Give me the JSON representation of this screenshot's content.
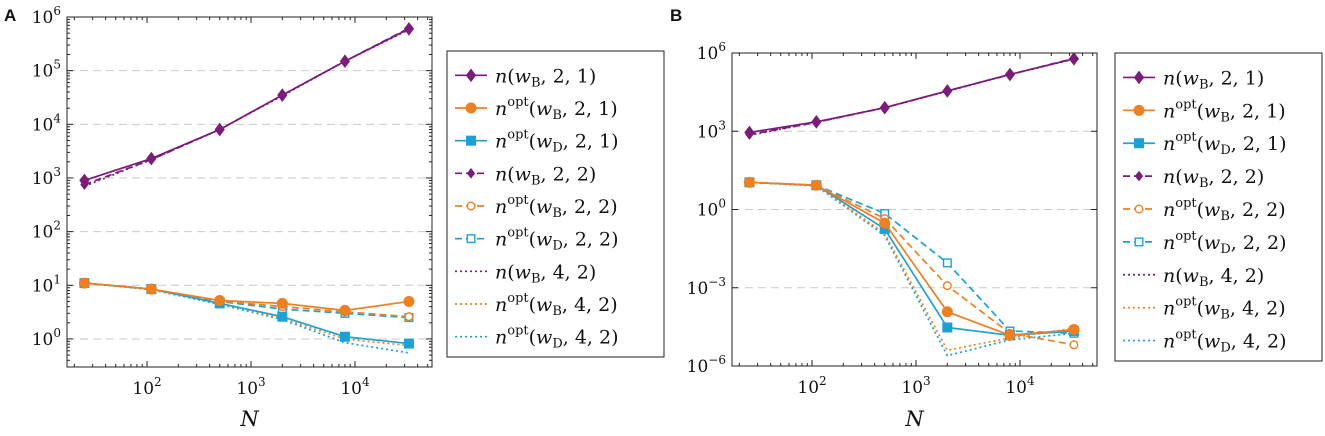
{
  "chart_data": [
    {
      "panel": "A",
      "type": "line",
      "xlabel": "N",
      "ylabel": "",
      "xscale": "log",
      "yscale": "log",
      "xlim": [
        17,
        55000
      ],
      "ylim": [
        0.3,
        1000000
      ],
      "x_ticks": [
        {
          "value": 100,
          "base": "10",
          "exp": "2"
        },
        {
          "value": 1000,
          "base": "10",
          "exp": "3"
        },
        {
          "value": 10000,
          "base": "10",
          "exp": "4"
        }
      ],
      "y_ticks": [
        {
          "value": 1,
          "base": "10",
          "exp": "0"
        },
        {
          "value": 10,
          "base": "10",
          "exp": "1"
        },
        {
          "value": 100,
          "base": "10",
          "exp": "2"
        },
        {
          "value": 1000,
          "base": "10",
          "exp": "3"
        },
        {
          "value": 10000,
          "base": "10",
          "exp": "4"
        },
        {
          "value": 100000,
          "base": "10",
          "exp": "5"
        },
        {
          "value": 1000000,
          "base": "10",
          "exp": "6"
        }
      ],
      "grid": "horizontal dashed",
      "legend_position": "outside-right",
      "series": [
        {
          "id": "s1",
          "x": [
            25,
            110,
            500,
            2000,
            8000,
            33000
          ],
          "y": [
            900,
            2300,
            8000,
            35000,
            150000,
            600000
          ]
        },
        {
          "id": "s2",
          "x": [
            25,
            110,
            500,
            2000,
            8000,
            33000
          ],
          "y": [
            11,
            8.5,
            5.2,
            4.6,
            3.4,
            5
          ]
        },
        {
          "id": "s3",
          "x": [
            25,
            110,
            500,
            2000,
            8000,
            33000
          ],
          "y": [
            11,
            8.5,
            4.6,
            2.6,
            1.1,
            0.82
          ]
        },
        {
          "id": "s4",
          "x": [
            25,
            110,
            500,
            2000,
            8000,
            33000
          ],
          "y": [
            750,
            2200,
            8000,
            35000,
            150000,
            620000
          ]
        },
        {
          "id": "s5",
          "x": [
            25,
            110,
            500,
            2000,
            8000,
            33000
          ],
          "y": [
            11,
            8.5,
            5.1,
            4.0,
            3.2,
            2.6
          ]
        },
        {
          "id": "s6",
          "x": [
            25,
            110,
            500,
            2000,
            8000,
            33000
          ],
          "y": [
            11,
            8.5,
            5.0,
            3.6,
            3.0,
            2.5
          ]
        },
        {
          "id": "s7",
          "x": [
            25,
            110,
            500,
            2000,
            8000,
            33000
          ],
          "y": [
            700,
            2200,
            8000,
            34000,
            150000,
            580000
          ]
        },
        {
          "id": "s8",
          "x": [
            25,
            110,
            500,
            2000,
            8000,
            33000
          ],
          "y": [
            11,
            8.4,
            4.6,
            2.4,
            1.0,
            0.75
          ]
        },
        {
          "id": "s9",
          "x": [
            25,
            110,
            500,
            2000,
            8000,
            33000
          ],
          "y": [
            11,
            8.3,
            4.4,
            2.3,
            0.85,
            0.55
          ]
        }
      ]
    },
    {
      "panel": "B",
      "type": "line",
      "xlabel": "N",
      "ylabel": "",
      "xscale": "log",
      "yscale": "log",
      "xlim": [
        17,
        55000
      ],
      "ylim": [
        1e-06,
        1000000
      ],
      "x_ticks": [
        {
          "value": 100,
          "base": "10",
          "exp": "2"
        },
        {
          "value": 1000,
          "base": "10",
          "exp": "3"
        },
        {
          "value": 10000,
          "base": "10",
          "exp": "4"
        }
      ],
      "y_ticks": [
        {
          "value": 1e-06,
          "base": "10",
          "exp": "−6"
        },
        {
          "value": 0.001,
          "base": "10",
          "exp": "−3"
        },
        {
          "value": 1,
          "base": "10",
          "exp": "0"
        },
        {
          "value": 1000,
          "base": "10",
          "exp": "3"
        },
        {
          "value": 1000000,
          "base": "10",
          "exp": "6"
        }
      ],
      "grid": "horizontal dashed",
      "legend_position": "outside-right",
      "series": [
        {
          "id": "s1",
          "x": [
            25,
            110,
            500,
            2000,
            8000,
            33000
          ],
          "y": [
            900,
            2300,
            8000,
            35000,
            150000,
            600000
          ]
        },
        {
          "id": "s2",
          "x": [
            25,
            110,
            500,
            2000,
            8000,
            33000
          ],
          "y": [
            11,
            8.5,
            0.3,
            0.00012,
            1.5e-05,
            2.5e-05
          ]
        },
        {
          "id": "s3",
          "x": [
            25,
            110,
            500,
            2000,
            8000,
            33000
          ],
          "y": [
            11,
            8.5,
            0.18,
            3e-05,
            1.5e-05,
            2.2e-05
          ]
        },
        {
          "id": "s4",
          "x": [
            25,
            110,
            500,
            2000,
            8000,
            33000
          ],
          "y": [
            750,
            2200,
            8000,
            35000,
            150000,
            620000
          ]
        },
        {
          "id": "s5",
          "x": [
            25,
            110,
            500,
            2000,
            8000,
            33000
          ],
          "y": [
            11,
            8.5,
            0.45,
            0.0012,
            1.8e-05,
            6.5e-06
          ]
        },
        {
          "id": "s6",
          "x": [
            25,
            110,
            500,
            2000,
            8000,
            33000
          ],
          "y": [
            11,
            8.5,
            0.7,
            0.009,
            2.2e-05,
            1.8e-05
          ]
        },
        {
          "id": "s7",
          "x": [
            25,
            110,
            500,
            2000,
            8000,
            33000
          ],
          "y": [
            700,
            2200,
            8000,
            34000,
            150000,
            580000
          ]
        },
        {
          "id": "s8",
          "x": [
            25,
            110,
            500,
            2000,
            8000,
            33000
          ],
          "y": [
            11,
            8.3,
            0.12,
            4e-06,
            1.2e-05,
            2.8e-05
          ]
        },
        {
          "id": "s9",
          "x": [
            25,
            110,
            500,
            2000,
            8000,
            33000
          ],
          "y": [
            11,
            8.0,
            0.1,
            2.5e-06,
            1e-05,
            1.8e-05
          ]
        }
      ]
    }
  ],
  "legend": [
    {
      "id": "s1",
      "color": "#7b1c7a",
      "dash": "solid",
      "marker": "diamond-filled",
      "fn": "n",
      "sup": "",
      "w": "w",
      "wsub": "B",
      "args": ", 2, 1)"
    },
    {
      "id": "s2",
      "color": "#f07f20",
      "dash": "solid",
      "marker": "circle-filled",
      "fn": "n",
      "sup": "opt",
      "w": "w",
      "wsub": "B",
      "args": ", 2, 1)"
    },
    {
      "id": "s3",
      "color": "#1aa2d8",
      "dash": "solid",
      "marker": "square-filled",
      "fn": "n",
      "sup": "opt",
      "w": "w",
      "wsub": "D",
      "args": ", 2, 1)"
    },
    {
      "id": "s4",
      "color": "#7b1c7a",
      "dash": "dashed",
      "marker": "diamond-filled-small",
      "fn": "n",
      "sup": "",
      "w": "w",
      "wsub": "B",
      "args": ", 2, 2)"
    },
    {
      "id": "s5",
      "color": "#f07f20",
      "dash": "dashed",
      "marker": "circle-open",
      "fn": "n",
      "sup": "opt",
      "w": "w",
      "wsub": "B",
      "args": ", 2, 2)"
    },
    {
      "id": "s6",
      "color": "#1aa2d8",
      "dash": "dashed",
      "marker": "square-open",
      "fn": "n",
      "sup": "opt",
      "w": "w",
      "wsub": "D",
      "args": ", 2, 2)"
    },
    {
      "id": "s7",
      "color": "#7b1c7a",
      "dash": "dotted",
      "marker": "none",
      "fn": "n",
      "sup": "",
      "w": "w",
      "wsub": "B",
      "args": ", 4, 2)"
    },
    {
      "id": "s8",
      "color": "#f07f20",
      "dash": "dotted",
      "marker": "none",
      "fn": "n",
      "sup": "opt",
      "w": "w",
      "wsub": "B",
      "args": ", 4, 2)"
    },
    {
      "id": "s9",
      "color": "#1aa2d8",
      "dash": "dotted",
      "marker": "none",
      "fn": "n",
      "sup": "opt",
      "w": "w",
      "wsub": "D",
      "args": ", 4, 2)"
    }
  ]
}
